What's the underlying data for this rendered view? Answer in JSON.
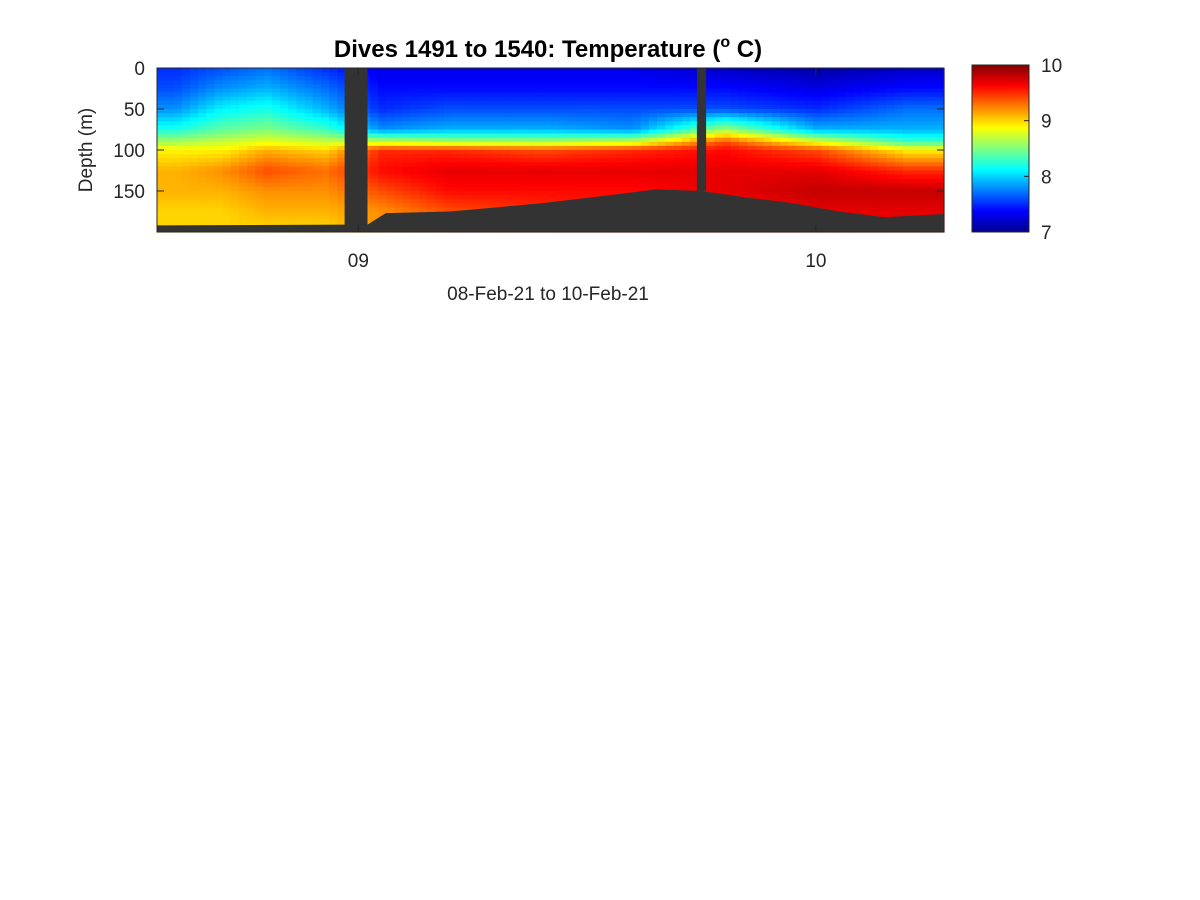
{
  "chart_data": {
    "type": "heatmap",
    "title": "Dives 1491 to 1540: Temperature (",
    "title_superscript": "o",
    "title_suffix": " C)",
    "xlabel": "08-Feb-21 to 10-Feb-21",
    "ylabel": "Depth (m)",
    "x_unit": "days (fractional day of February 2021)",
    "xlim": [
      8.56,
      10.28
    ],
    "ylim": [
      0,
      200
    ],
    "y_reversed": true,
    "x_ticks": [
      9,
      10
    ],
    "x_tick_labels": [
      "09",
      "10"
    ],
    "y_ticks": [
      0,
      50,
      100,
      150
    ],
    "y_tick_labels": [
      "0",
      "50",
      "100",
      "150"
    ],
    "colorbar": {
      "colormap": "jet",
      "clim": [
        7,
        10
      ],
      "ticks": [
        7,
        8,
        9,
        10
      ],
      "tick_labels": [
        "7",
        "8",
        "9",
        "10"
      ]
    },
    "no_data_color": "#333333",
    "data_gaps": [
      [
        8.97,
        9.02
      ],
      [
        9.74,
        9.76
      ]
    ],
    "temperature_profiles": [
      {
        "time": 8.6,
        "depths": [
          0,
          25,
          50,
          75,
          90,
          100,
          125,
          150,
          175,
          195
        ],
        "temperature": [
          7.5,
          7.6,
          7.8,
          8.2,
          8.6,
          8.9,
          9.1,
          9.1,
          9.0,
          9.0
        ]
      },
      {
        "time": 8.7,
        "depths": [
          0,
          25,
          50,
          75,
          90,
          100,
          125,
          150,
          175,
          195
        ],
        "temperature": [
          7.6,
          7.8,
          8.1,
          8.4,
          8.7,
          8.9,
          9.2,
          9.1,
          9.0,
          9.0
        ]
      },
      {
        "time": 8.8,
        "depths": [
          0,
          25,
          50,
          75,
          90,
          100,
          125,
          150,
          175,
          195
        ],
        "temperature": [
          7.7,
          7.9,
          8.2,
          8.5,
          8.8,
          9.1,
          9.4,
          9.2,
          9.1,
          9.0
        ]
      },
      {
        "time": 8.93,
        "depths": [
          0,
          25,
          50,
          75,
          90,
          100,
          125,
          150,
          175,
          195
        ],
        "temperature": [
          7.5,
          7.7,
          7.9,
          8.3,
          8.7,
          9.0,
          9.3,
          9.2,
          9.1,
          9.0
        ]
      },
      {
        "time": 9.05,
        "depths": [
          0,
          25,
          50,
          75,
          90,
          100,
          125,
          150,
          175,
          195
        ],
        "temperature": [
          7.3,
          7.4,
          7.5,
          7.8,
          8.7,
          9.5,
          9.6,
          9.4,
          9.2,
          9.2
        ]
      },
      {
        "time": 9.2,
        "depths": [
          0,
          25,
          50,
          75,
          90,
          100,
          125,
          150,
          175,
          195
        ],
        "temperature": [
          7.3,
          7.4,
          7.6,
          7.9,
          8.6,
          9.5,
          9.7,
          9.6,
          9.4,
          9.4
        ]
      },
      {
        "time": 9.4,
        "depths": [
          0,
          25,
          50,
          75,
          90,
          100,
          125,
          150,
          175,
          195
        ],
        "temperature": [
          7.3,
          7.4,
          7.6,
          7.9,
          8.6,
          9.4,
          9.7,
          9.6,
          9.5,
          9.5
        ]
      },
      {
        "time": 9.6,
        "depths": [
          0,
          25,
          50,
          75,
          90,
          100,
          125,
          150,
          175,
          195
        ],
        "temperature": [
          7.3,
          7.4,
          7.6,
          7.8,
          8.7,
          9.5,
          9.7,
          9.6,
          9.6,
          9.6
        ]
      },
      {
        "time": 9.8,
        "depths": [
          0,
          25,
          50,
          75,
          90,
          100,
          125,
          150,
          175,
          195
        ],
        "temperature": [
          7.2,
          7.4,
          7.6,
          8.6,
          9.4,
          9.6,
          9.7,
          9.7,
          9.6,
          9.6
        ]
      },
      {
        "time": 10.0,
        "depths": [
          0,
          25,
          50,
          75,
          90,
          100,
          125,
          150,
          175,
          195
        ],
        "temperature": [
          7.1,
          7.3,
          7.5,
          7.9,
          8.8,
          9.4,
          9.7,
          9.8,
          9.7,
          9.7
        ]
      },
      {
        "time": 10.2,
        "depths": [
          0,
          25,
          50,
          75,
          90,
          100,
          125,
          150,
          175,
          195
        ],
        "temperature": [
          7.2,
          7.4,
          7.7,
          7.9,
          8.3,
          8.9,
          9.5,
          9.8,
          9.7,
          9.7
        ]
      }
    ],
    "seafloor_depth": {
      "time": [
        8.56,
        8.96,
        9.02,
        9.06,
        9.2,
        9.4,
        9.55,
        9.65,
        9.75,
        9.85,
        9.95,
        10.05,
        10.15,
        10.28
      ],
      "depth": [
        192,
        191,
        191,
        177,
        175,
        165,
        155,
        148,
        150,
        158,
        165,
        175,
        182,
        178
      ]
    }
  }
}
